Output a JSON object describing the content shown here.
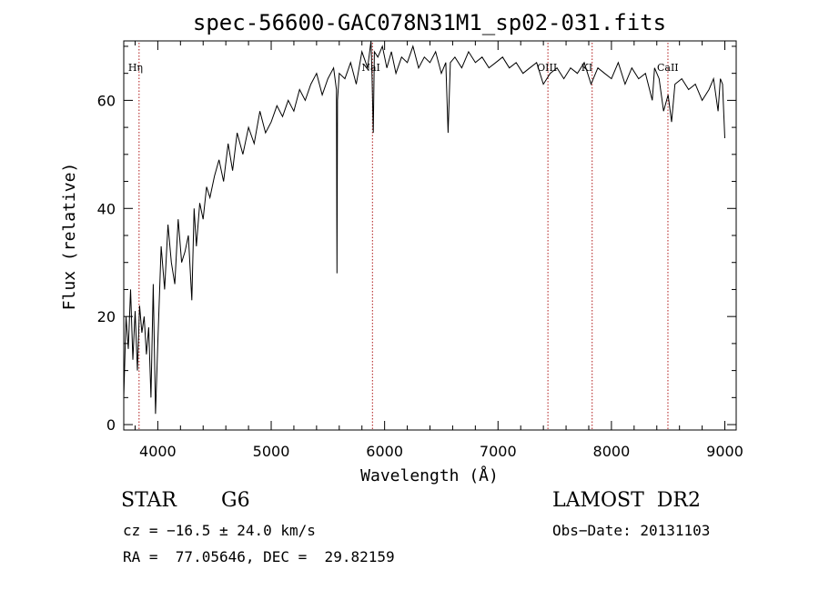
{
  "chart_data": {
    "type": "line",
    "title": "spec-56600-GAC078N31M1_sp02-031.fits",
    "xlabel": "Wavelength (Å)",
    "ylabel": "Flux (relative)",
    "xlim": [
      3700,
      9100
    ],
    "ylim": [
      -1,
      71
    ],
    "grid": false,
    "x_ticks": [
      {
        "value": 4000,
        "label": "4000"
      },
      {
        "value": 5000,
        "label": "5000"
      },
      {
        "value": 6000,
        "label": "6000"
      },
      {
        "value": 7000,
        "label": "7000"
      },
      {
        "value": 8000,
        "label": "8000"
      },
      {
        "value": 9000,
        "label": "9000"
      }
    ],
    "y_ticks": [
      {
        "value": 0,
        "label": "0"
      },
      {
        "value": 20,
        "label": "20"
      },
      {
        "value": 40,
        "label": "40"
      },
      {
        "value": 60,
        "label": "60"
      }
    ],
    "line_markers": [
      {
        "label": "Hη",
        "x": 3835
      },
      {
        "label": "NaI",
        "x": 5893
      },
      {
        "label": "OIII",
        "x": 7440
      },
      {
        "label": "KI",
        "x": 7830
      },
      {
        "label": "CaII",
        "x": 8498
      }
    ],
    "series": [
      {
        "x": [
          3700,
          3720,
          3740,
          3760,
          3780,
          3800,
          3820,
          3840,
          3860,
          3880,
          3900,
          3920,
          3940,
          3960,
          3980,
          4000,
          4030,
          4060,
          4090,
          4120,
          4150,
          4180,
          4210,
          4240,
          4270,
          4300,
          4320,
          4340,
          4370,
          4400,
          4430,
          4460,
          4500,
          4540,
          4580,
          4620,
          4660,
          4700,
          4750,
          4800,
          4850,
          4900,
          4950,
          5000,
          5050,
          5100,
          5150,
          5200,
          5250,
          5300,
          5350,
          5400,
          5450,
          5500,
          5550,
          5575,
          5580,
          5585,
          5600,
          5650,
          5700,
          5750,
          5800,
          5850,
          5880,
          5890,
          5900,
          5910,
          5940,
          5980,
          6020,
          6060,
          6100,
          6150,
          6200,
          6250,
          6300,
          6350,
          6400,
          6450,
          6500,
          6540,
          6560,
          6580,
          6620,
          6680,
          6740,
          6800,
          6860,
          6920,
          6980,
          7040,
          7100,
          7160,
          7220,
          7280,
          7340,
          7400,
          7460,
          7520,
          7580,
          7640,
          7700,
          7760,
          7820,
          7880,
          7940,
          8000,
          8060,
          8120,
          8180,
          8240,
          8300,
          8360,
          8380,
          8420,
          8460,
          8500,
          8530,
          8560,
          8620,
          8680,
          8740,
          8800,
          8860,
          8900,
          8940,
          8960,
          8980,
          9000
        ],
        "y": [
          5,
          20,
          14,
          25,
          12,
          21,
          10,
          22,
          17,
          20,
          13,
          18,
          5,
          26,
          2,
          15,
          33,
          25,
          37,
          30,
          26,
          38,
          30,
          32,
          35,
          23,
          40,
          33,
          41,
          38,
          44,
          42,
          46,
          49,
          45,
          52,
          47,
          54,
          50,
          55,
          52,
          58,
          54,
          56,
          59,
          57,
          60,
          58,
          62,
          60,
          63,
          65,
          61,
          64,
          66,
          62,
          28,
          60,
          65,
          64,
          67,
          63,
          69,
          66,
          71,
          64,
          54,
          69,
          68,
          70,
          66,
          69,
          65,
          68,
          67,
          70,
          66,
          68,
          67,
          69,
          65,
          67,
          54,
          67,
          68,
          66,
          69,
          67,
          68,
          66,
          67,
          68,
          66,
          67,
          65,
          66,
          67,
          63,
          65,
          66,
          64,
          66,
          65,
          67,
          63,
          66,
          65,
          64,
          67,
          63,
          66,
          64,
          65,
          60,
          66,
          64,
          58,
          61,
          56,
          63,
          64,
          62,
          63,
          60,
          62,
          64,
          58,
          64,
          63,
          53
        ]
      }
    ]
  },
  "footer": {
    "object_class": "STAR",
    "subclass": "G6",
    "survey": "LAMOST  DR2",
    "cz": "cz = −16.5 ± 24.0 km/s",
    "obs_date": "Obs−Date: 20131103",
    "coords": "RA =  77.05646, DEC =  29.82159"
  }
}
